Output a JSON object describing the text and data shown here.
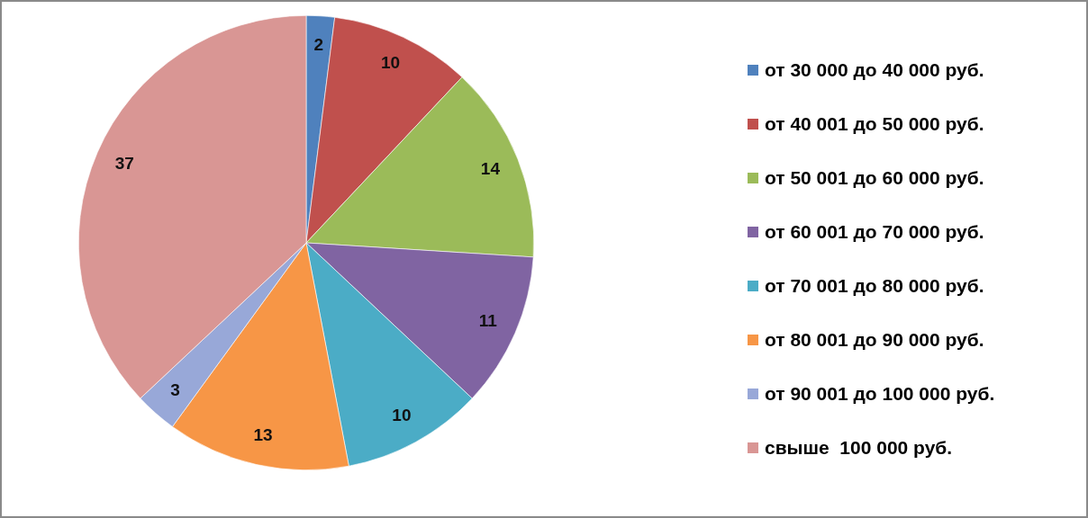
{
  "chart_data": {
    "type": "pie",
    "categories": [
      "от 30 000 до 40 000 руб.",
      "от 40 001 до 50 000 руб.",
      "от 50 001 до 60 000 руб.",
      "от 60 001 до 70 000 руб.",
      "от 70 001 до 80 000 руб.",
      "от 80 001 до 90 000 руб.",
      "от 90 001 до 100 000 руб.",
      "свыше  100 000 руб."
    ],
    "values": [
      2,
      10,
      14,
      11,
      10,
      13,
      3,
      37
    ],
    "colors": [
      "#4f81bd",
      "#c0504d",
      "#9bbb59",
      "#8064a2",
      "#4bacc6",
      "#f79646",
      "#98a8d8",
      "#d99694"
    ],
    "legend": "right",
    "data_labels": true
  }
}
